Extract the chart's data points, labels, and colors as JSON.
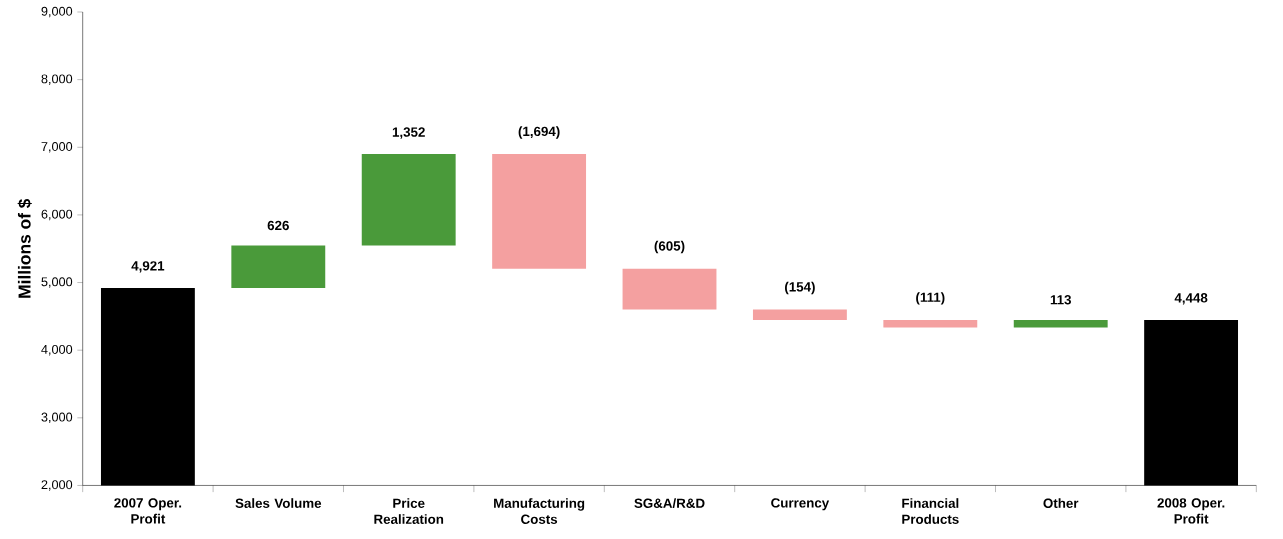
{
  "chart_data": {
    "type": "bar",
    "ylabel": "Millions of $",
    "categories": [
      "2007 Oper. Profit",
      "Sales Volume",
      "Price Realization",
      "Manufacturing Costs",
      "SG&A/R&D",
      "Currency",
      "Financial Products",
      "Other",
      "2008 Oper. Profit"
    ],
    "values": [
      4921,
      626,
      1352,
      -1694,
      -605,
      -154,
      -111,
      113,
      4448
    ],
    "base": [
      null,
      4921,
      5547,
      6899,
      5205,
      4600,
      4446,
      4335,
      null
    ],
    "colors": [
      "#000000",
      "#4a9a3a",
      "#4a9a3a",
      "#f4a0a0",
      "#f4a0a0",
      "#f4a0a0",
      "#f4a0a0",
      "#4a9a3a",
      "#000000"
    ],
    "value_labels": [
      "4,921",
      "626",
      "1,352",
      "(1,694)",
      "(605)",
      "(154)",
      "(111)",
      "113",
      "4,448"
    ],
    "ylim": [
      2000,
      9000
    ],
    "yticks": [
      {
        "value": 2000,
        "label": "2,000"
      },
      {
        "value": 3000,
        "label": "3,000"
      },
      {
        "value": 4000,
        "label": "4,000"
      },
      {
        "value": 5000,
        "label": "5,000"
      },
      {
        "value": 6000,
        "label": "6,000"
      },
      {
        "value": 7000,
        "label": "7,000"
      },
      {
        "value": 8000,
        "label": "8,000"
      },
      {
        "value": 9000,
        "label": "9,000"
      }
    ],
    "grid": false
  }
}
